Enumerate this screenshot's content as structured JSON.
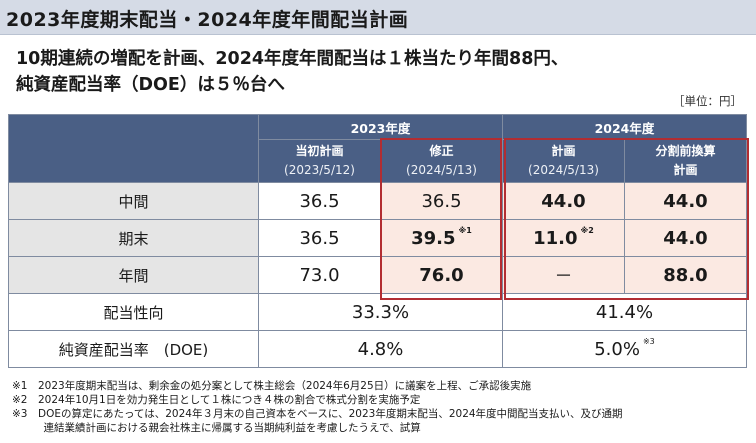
{
  "page_title": "2023年度期末配当・2024年度年間配当計画",
  "headline": {
    "line1": "10期連続の増配を計画、2024年度年間配当は１株当たり年間88円、",
    "line2": "純資産配当率（DOE）は５％台へ"
  },
  "unit": "［単位：円］",
  "table": {
    "groups": [
      "2023年度",
      "2024年度"
    ],
    "columns": [
      {
        "label": "当初計画",
        "date": "(2023/5/12)"
      },
      {
        "label": "修正",
        "date": "(2024/5/13)"
      },
      {
        "label": "計画",
        "date": "(2024/5/13)"
      },
      {
        "label": "分割前換算",
        "date": "計画"
      }
    ],
    "rows": [
      {
        "label": "中間",
        "values": [
          "36.5",
          "36.5",
          "44.0",
          "44.0"
        ],
        "notes": [
          "",
          "",
          "",
          ""
        ]
      },
      {
        "label": "期末",
        "values": [
          "36.5",
          "39.5",
          "11.0",
          "44.0"
        ],
        "notes": [
          "",
          "※1",
          "※2",
          ""
        ]
      },
      {
        "label": "年間",
        "values": [
          "73.0",
          "76.0",
          "－",
          "88.0"
        ],
        "notes": [
          "",
          "",
          "",
          ""
        ]
      }
    ],
    "payout": {
      "label": "配当性向",
      "fy2023": "33.3%",
      "fy2024": "41.4%"
    },
    "doe": {
      "label": "純資産配当率　(DOE)",
      "fy2023": "4.8%",
      "fy2024": "5.0%",
      "fy2024_note": "※3"
    }
  },
  "footnotes": [
    "※1　2023年度期末配当は、剰余金の処分案として株主総会（2024年6月25日）に議案を上程、ご承認後実施",
    "※2　2024年10月1日を効力発生日として１株につき４株の割合で株式分割を実施予定",
    "※3　DOEの算定にあたっては、2024年３月末の自己資本をベースに、2023年度期末配当、2024年度中間配当支払い、及び通期",
    "　　　連結業績計画における親会社株主に帰属する当期純利益を考慮したうえで、試算"
  ],
  "colors": {
    "header_blue": "#4a5f85",
    "highlight_red": "#b22d32",
    "highlight_pink": "#fbe9e2",
    "title_bar": "#d5dbe6"
  }
}
